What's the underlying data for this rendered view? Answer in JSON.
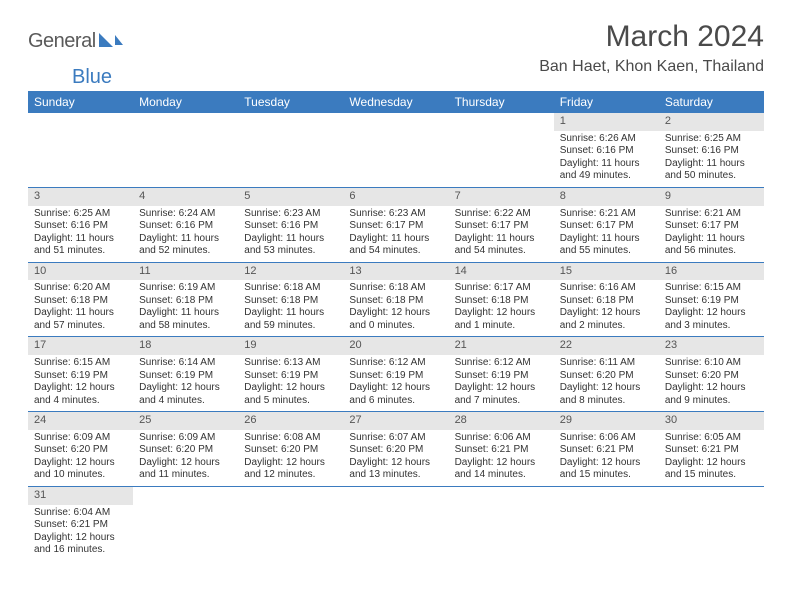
{
  "brand": {
    "part1": "General",
    "part2": "Blue"
  },
  "title": "March 2024",
  "location": "Ban Haet, Khon Kaen, Thailand",
  "colors": {
    "header_bg": "#3b7bbf",
    "daynum_bg": "#e6e6e6",
    "text": "#333333",
    "title": "#4a4a4a",
    "row_border": "#3b7bbf"
  },
  "fonts": {
    "title_size": 30,
    "location_size": 16,
    "th_size": 12,
    "cell_size": 10
  },
  "dow": [
    "Sunday",
    "Monday",
    "Tuesday",
    "Wednesday",
    "Thursday",
    "Friday",
    "Saturday"
  ],
  "weeks": [
    [
      null,
      null,
      null,
      null,
      null,
      {
        "n": "1",
        "sr": "Sunrise: 6:26 AM",
        "ss": "Sunset: 6:16 PM",
        "dl": "Daylight: 11 hours and 49 minutes."
      },
      {
        "n": "2",
        "sr": "Sunrise: 6:25 AM",
        "ss": "Sunset: 6:16 PM",
        "dl": "Daylight: 11 hours and 50 minutes."
      }
    ],
    [
      {
        "n": "3",
        "sr": "Sunrise: 6:25 AM",
        "ss": "Sunset: 6:16 PM",
        "dl": "Daylight: 11 hours and 51 minutes."
      },
      {
        "n": "4",
        "sr": "Sunrise: 6:24 AM",
        "ss": "Sunset: 6:16 PM",
        "dl": "Daylight: 11 hours and 52 minutes."
      },
      {
        "n": "5",
        "sr": "Sunrise: 6:23 AM",
        "ss": "Sunset: 6:16 PM",
        "dl": "Daylight: 11 hours and 53 minutes."
      },
      {
        "n": "6",
        "sr": "Sunrise: 6:23 AM",
        "ss": "Sunset: 6:17 PM",
        "dl": "Daylight: 11 hours and 54 minutes."
      },
      {
        "n": "7",
        "sr": "Sunrise: 6:22 AM",
        "ss": "Sunset: 6:17 PM",
        "dl": "Daylight: 11 hours and 54 minutes."
      },
      {
        "n": "8",
        "sr": "Sunrise: 6:21 AM",
        "ss": "Sunset: 6:17 PM",
        "dl": "Daylight: 11 hours and 55 minutes."
      },
      {
        "n": "9",
        "sr": "Sunrise: 6:21 AM",
        "ss": "Sunset: 6:17 PM",
        "dl": "Daylight: 11 hours and 56 minutes."
      }
    ],
    [
      {
        "n": "10",
        "sr": "Sunrise: 6:20 AM",
        "ss": "Sunset: 6:18 PM",
        "dl": "Daylight: 11 hours and 57 minutes."
      },
      {
        "n": "11",
        "sr": "Sunrise: 6:19 AM",
        "ss": "Sunset: 6:18 PM",
        "dl": "Daylight: 11 hours and 58 minutes."
      },
      {
        "n": "12",
        "sr": "Sunrise: 6:18 AM",
        "ss": "Sunset: 6:18 PM",
        "dl": "Daylight: 11 hours and 59 minutes."
      },
      {
        "n": "13",
        "sr": "Sunrise: 6:18 AM",
        "ss": "Sunset: 6:18 PM",
        "dl": "Daylight: 12 hours and 0 minutes."
      },
      {
        "n": "14",
        "sr": "Sunrise: 6:17 AM",
        "ss": "Sunset: 6:18 PM",
        "dl": "Daylight: 12 hours and 1 minute."
      },
      {
        "n": "15",
        "sr": "Sunrise: 6:16 AM",
        "ss": "Sunset: 6:18 PM",
        "dl": "Daylight: 12 hours and 2 minutes."
      },
      {
        "n": "16",
        "sr": "Sunrise: 6:15 AM",
        "ss": "Sunset: 6:19 PM",
        "dl": "Daylight: 12 hours and 3 minutes."
      }
    ],
    [
      {
        "n": "17",
        "sr": "Sunrise: 6:15 AM",
        "ss": "Sunset: 6:19 PM",
        "dl": "Daylight: 12 hours and 4 minutes."
      },
      {
        "n": "18",
        "sr": "Sunrise: 6:14 AM",
        "ss": "Sunset: 6:19 PM",
        "dl": "Daylight: 12 hours and 4 minutes."
      },
      {
        "n": "19",
        "sr": "Sunrise: 6:13 AM",
        "ss": "Sunset: 6:19 PM",
        "dl": "Daylight: 12 hours and 5 minutes."
      },
      {
        "n": "20",
        "sr": "Sunrise: 6:12 AM",
        "ss": "Sunset: 6:19 PM",
        "dl": "Daylight: 12 hours and 6 minutes."
      },
      {
        "n": "21",
        "sr": "Sunrise: 6:12 AM",
        "ss": "Sunset: 6:19 PM",
        "dl": "Daylight: 12 hours and 7 minutes."
      },
      {
        "n": "22",
        "sr": "Sunrise: 6:11 AM",
        "ss": "Sunset: 6:20 PM",
        "dl": "Daylight: 12 hours and 8 minutes."
      },
      {
        "n": "23",
        "sr": "Sunrise: 6:10 AM",
        "ss": "Sunset: 6:20 PM",
        "dl": "Daylight: 12 hours and 9 minutes."
      }
    ],
    [
      {
        "n": "24",
        "sr": "Sunrise: 6:09 AM",
        "ss": "Sunset: 6:20 PM",
        "dl": "Daylight: 12 hours and 10 minutes."
      },
      {
        "n": "25",
        "sr": "Sunrise: 6:09 AM",
        "ss": "Sunset: 6:20 PM",
        "dl": "Daylight: 12 hours and 11 minutes."
      },
      {
        "n": "26",
        "sr": "Sunrise: 6:08 AM",
        "ss": "Sunset: 6:20 PM",
        "dl": "Daylight: 12 hours and 12 minutes."
      },
      {
        "n": "27",
        "sr": "Sunrise: 6:07 AM",
        "ss": "Sunset: 6:20 PM",
        "dl": "Daylight: 12 hours and 13 minutes."
      },
      {
        "n": "28",
        "sr": "Sunrise: 6:06 AM",
        "ss": "Sunset: 6:21 PM",
        "dl": "Daylight: 12 hours and 14 minutes."
      },
      {
        "n": "29",
        "sr": "Sunrise: 6:06 AM",
        "ss": "Sunset: 6:21 PM",
        "dl": "Daylight: 12 hours and 15 minutes."
      },
      {
        "n": "30",
        "sr": "Sunrise: 6:05 AM",
        "ss": "Sunset: 6:21 PM",
        "dl": "Daylight: 12 hours and 15 minutes."
      }
    ],
    [
      {
        "n": "31",
        "sr": "Sunrise: 6:04 AM",
        "ss": "Sunset: 6:21 PM",
        "dl": "Daylight: 12 hours and 16 minutes."
      },
      null,
      null,
      null,
      null,
      null,
      null
    ]
  ]
}
